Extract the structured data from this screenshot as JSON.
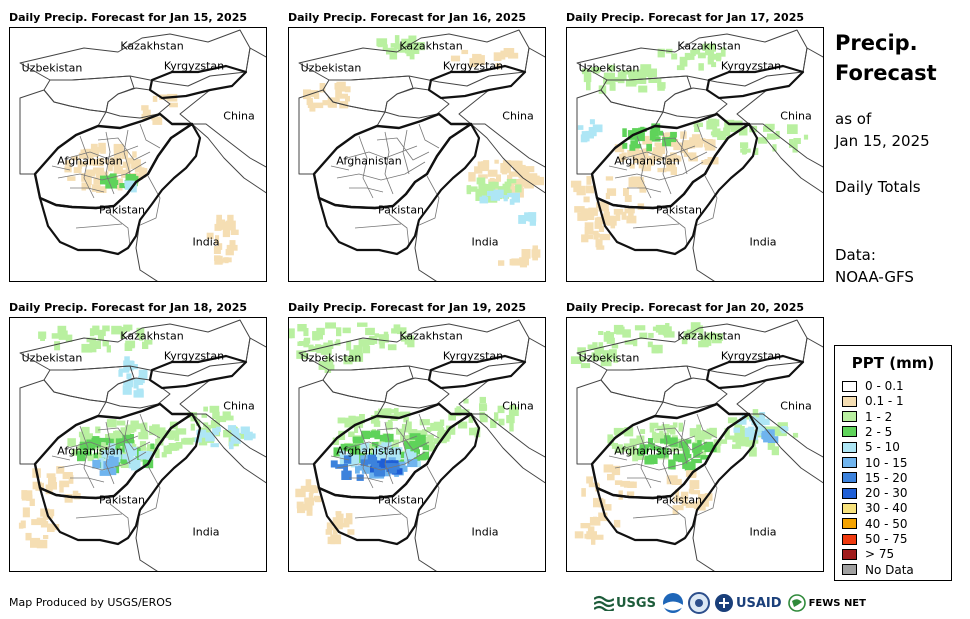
{
  "panels": [
    {
      "title": "Daily Precip. Forecast for Jan 15, 2025"
    },
    {
      "title": "Daily Precip. Forecast for Jan 16, 2025"
    },
    {
      "title": "Daily Precip. Forecast for Jan 17, 2025"
    },
    {
      "title": "Daily Precip. Forecast for Jan 18, 2025"
    },
    {
      "title": "Daily Precip. Forecast for Jan 19, 2025"
    },
    {
      "title": "Daily Precip. Forecast for Jan 20, 2025"
    }
  ],
  "map_labels": {
    "kazakhstan": "Kazakhstan",
    "uzbekistan": "Uzbekistan",
    "kyrgyzstan": "Kyrgyzstan",
    "china": "China",
    "afghanistan": "Afghanistan",
    "pakistan": "Pakistan",
    "india": "India"
  },
  "side": {
    "title_line1": "Precip.",
    "title_line2": "Forecast",
    "asof_line1": "as of",
    "asof_line2": "Jan 15, 2025",
    "daily_totals": "Daily Totals",
    "data_line1": "Data:",
    "data_line2": "NOAA-GFS"
  },
  "legend": {
    "title": "PPT (mm)",
    "items": [
      {
        "label": "0 - 0.1",
        "color": "#ffffff"
      },
      {
        "label": "0.1 - 1",
        "color": "#f5deb3"
      },
      {
        "label": "1 - 2",
        "color": "#b9f0a0"
      },
      {
        "label": "2 - 5",
        "color": "#5fd35a"
      },
      {
        "label": "5 - 10",
        "color": "#aee6f5"
      },
      {
        "label": "10 - 15",
        "color": "#6fb4ee"
      },
      {
        "label": "15 - 20",
        "color": "#3c82dc"
      },
      {
        "label": "20 - 30",
        "color": "#1f5fd6"
      },
      {
        "label": "30 - 40",
        "color": "#f7e27c"
      },
      {
        "label": "40 - 50",
        "color": "#f5a300"
      },
      {
        "label": "50 - 75",
        "color": "#ef3a0f"
      },
      {
        "label": "> 75",
        "color": "#a01c1c"
      },
      {
        "label": "No Data",
        "color": "#a0a0a0"
      }
    ]
  },
  "footer": {
    "credit": "Map Produced by USGS/EROS",
    "usgs": "USGS",
    "usaid": "USAID",
    "fewsnet": "FEWS NET"
  }
}
